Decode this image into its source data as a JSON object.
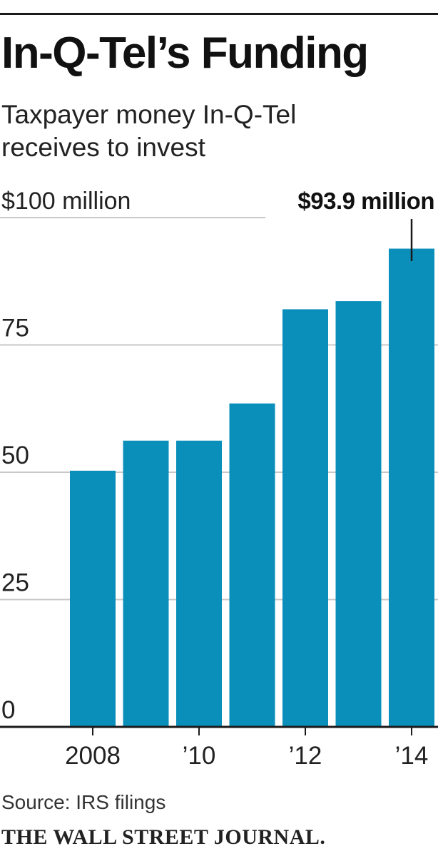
{
  "header": {
    "title": "In-Q-Tel’s Funding",
    "subtitle": "Taxpayer money In-Q-Tel receives to invest"
  },
  "footer": {
    "source": "Source: IRS filings",
    "publisher": "THE WALL STREET JOURNAL."
  },
  "colors": {
    "bar": "#0a8fbb",
    "grid": "#c8c8c8",
    "axis": "#1a1a1a",
    "text": "#222222"
  },
  "chart_data": {
    "type": "bar",
    "categories": [
      "2008",
      "2009",
      "2010",
      "2011",
      "2012",
      "2013",
      "2014"
    ],
    "x_tick_labels": [
      "2008",
      "",
      "’10",
      "",
      "’12",
      "",
      "’14"
    ],
    "values": [
      50.3,
      56.2,
      56.2,
      63.5,
      82.0,
      83.6,
      93.9
    ],
    "y_tick_values": [
      0,
      25,
      50,
      75,
      100
    ],
    "y_tick_labels": [
      "0",
      "25",
      "50",
      "75",
      "$100 million"
    ],
    "ylim": [
      0,
      100
    ],
    "annotation": {
      "index": 6,
      "text": "$93.9 million"
    },
    "grid": true
  }
}
